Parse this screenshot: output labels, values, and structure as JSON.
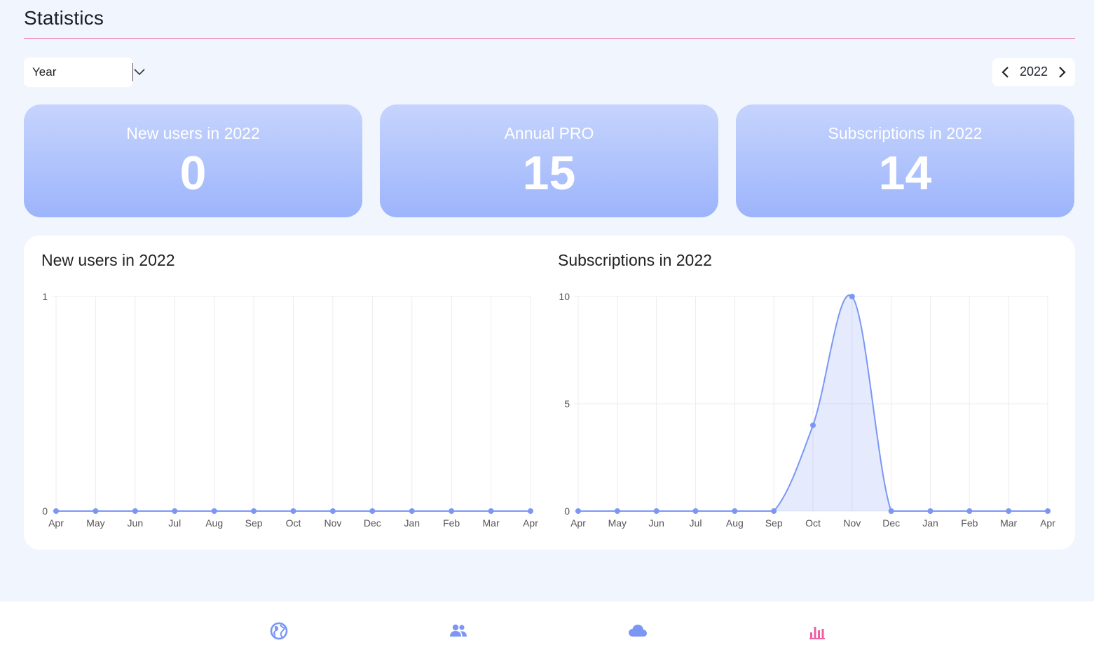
{
  "header": {
    "title": "Statistics"
  },
  "filters": {
    "period": {
      "selected": "Year"
    },
    "year_nav": {
      "year": "2022"
    }
  },
  "stats": [
    {
      "label": "New users in 2022",
      "value": "0"
    },
    {
      "label": "Annual PRO",
      "value": "15"
    },
    {
      "label": "Subscriptions in 2022",
      "value": "14"
    }
  ],
  "colors": {
    "accent": "#e8649a",
    "series": "#7b97f5",
    "card_top": "#c6d4fd",
    "card_bottom": "#9cb4fb"
  },
  "chart_data": [
    {
      "type": "line",
      "title": "New users in 2022",
      "categories": [
        "Apr",
        "May",
        "Jun",
        "Jul",
        "Aug",
        "Sep",
        "Oct",
        "Nov",
        "Dec",
        "Jan",
        "Feb",
        "Mar",
        "Apr"
      ],
      "values": [
        0,
        0,
        0,
        0,
        0,
        0,
        0,
        0,
        0,
        0,
        0,
        0,
        0
      ],
      "ylim": [
        0,
        1
      ],
      "yticks": [
        "0",
        "1"
      ],
      "ytick_values": [
        0,
        1
      ],
      "fill": false,
      "grid": true
    },
    {
      "type": "area",
      "title": "Subscriptions in 2022",
      "categories": [
        "Apr",
        "May",
        "Jun",
        "Jul",
        "Aug",
        "Sep",
        "Oct",
        "Nov",
        "Dec",
        "Jan",
        "Feb",
        "Mar",
        "Apr"
      ],
      "values": [
        0,
        0,
        0,
        0,
        0,
        0,
        4,
        10,
        0,
        0,
        0,
        0,
        0
      ],
      "ylim": [
        0,
        10
      ],
      "yticks": [
        "0",
        "5",
        "10"
      ],
      "ytick_values": [
        0,
        5,
        10
      ],
      "fill": true,
      "grid": true
    }
  ],
  "bottom_nav": {
    "items": [
      {
        "icon": "globe-icon"
      },
      {
        "icon": "users-icon"
      },
      {
        "icon": "cloud-icon"
      },
      {
        "icon": "bar-chart-icon",
        "active": true
      }
    ]
  }
}
